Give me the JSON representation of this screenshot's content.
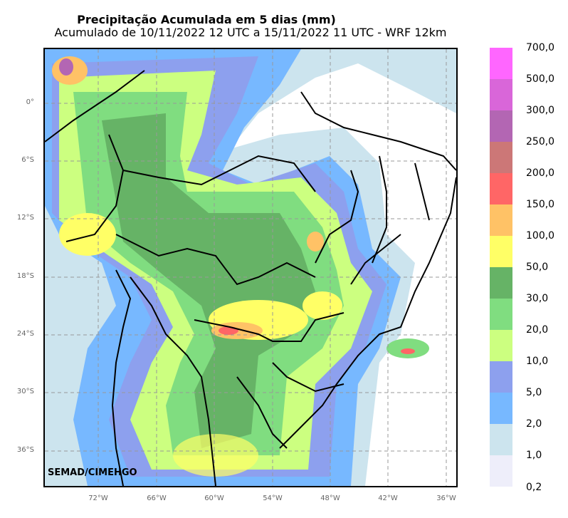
{
  "header": {
    "title": "Precipitação Acumulada em 5 dias (mm)",
    "subtitle": "Acumulado de 10/11/2022 12 UTC a 15/11/2022 11 UTC - WRF 12km"
  },
  "map": {
    "lat_labels": [
      "0°",
      "6°S",
      "12°S",
      "18°S",
      "24°S",
      "30°S",
      "36°S"
    ],
    "lon_labels": [
      "72°W",
      "66°W",
      "60°W",
      "54°W",
      "48°W",
      "42°W",
      "36°W"
    ],
    "credit": "SEMAD/CIMEHGO"
  },
  "legend": {
    "levels": [
      {
        "label": "700,0",
        "color": "#ff66ff"
      },
      {
        "label": "500,0",
        "color": "#d966d9"
      },
      {
        "label": "300,0",
        "color": "#b366b3"
      },
      {
        "label": "250,0",
        "color": "#cc7777"
      },
      {
        "label": "200,0",
        "color": "#ff6666"
      },
      {
        "label": "150,0",
        "color": "#ffc266"
      },
      {
        "label": "100,0",
        "color": "#ffff66"
      },
      {
        "label": "50,0",
        "color": "#66b366"
      },
      {
        "label": "30,0",
        "color": "#80dd80"
      },
      {
        "label": "20,0",
        "color": "#ccff80"
      },
      {
        "label": "10,0",
        "color": "#8da0ee"
      },
      {
        "label": "5,0",
        "color": "#77b8ff"
      },
      {
        "label": "2,0",
        "color": "#cce4ee"
      },
      {
        "label": "1,0",
        "color": "#eeeefa"
      }
    ],
    "bottom_label": "0,2"
  }
}
